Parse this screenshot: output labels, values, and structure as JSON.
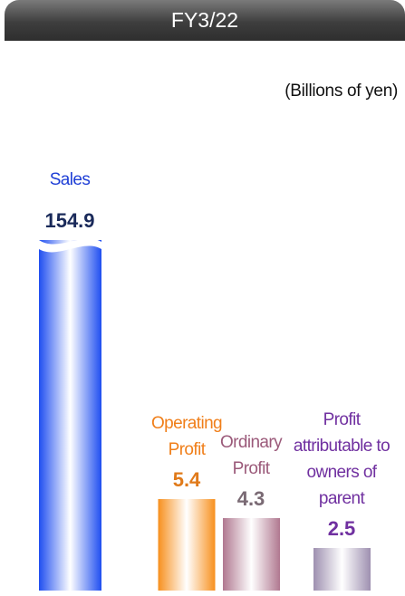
{
  "chart_data": {
    "type": "bar",
    "title": "FY3/22",
    "subtitle": "(Billions of yen)",
    "categories": [
      "Sales",
      "Operating Profit",
      "Ordinary Profit",
      "Profit attributable to owners of parent"
    ],
    "values": [
      154.9,
      5.4,
      4.3,
      2.5
    ],
    "colors": [
      "#1f4ef0",
      "#f7901e",
      "#b07890",
      "#9e90b0"
    ],
    "label_colors": [
      "#1f3fd6",
      "#f07f1a",
      "#9b5a7a",
      "#7030a0"
    ],
    "value_colors": [
      "#1a2a5a",
      "#e07a1a",
      "#7a6a74",
      "#7030a0"
    ],
    "broken": [
      true,
      false,
      false,
      false
    ]
  }
}
